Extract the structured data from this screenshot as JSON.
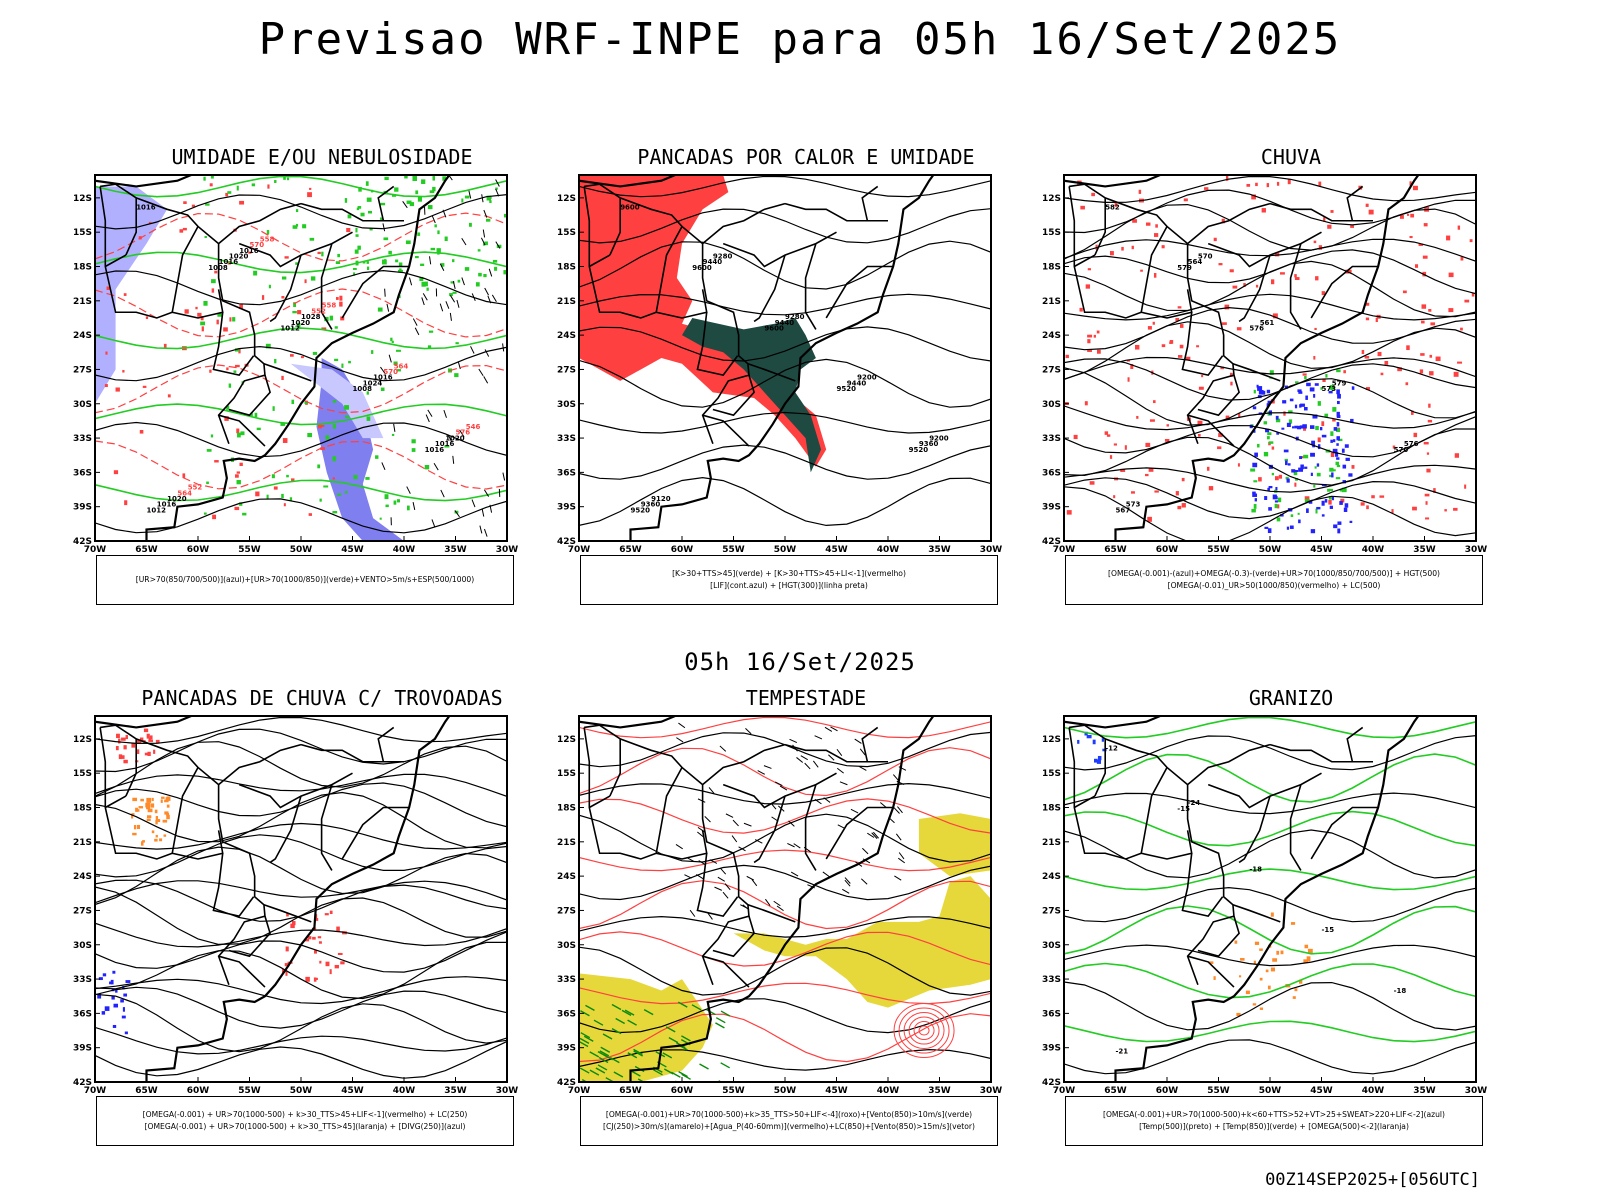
{
  "header": {
    "title": "Previsao WRF-INPE  para 05h 16/Set/2025"
  },
  "middle": {
    "subtitle": "05h 16/Set/2025"
  },
  "footer": {
    "run": "00Z14SEP2025+[056UTC]"
  },
  "axes": {
    "lat_labels": [
      "12S",
      "15S",
      "18S",
      "21S",
      "24S",
      "27S",
      "30S",
      "33S",
      "36S",
      "39S",
      "42S"
    ],
    "lon_labels": [
      "70W",
      "65W",
      "60W",
      "55W",
      "50W",
      "45W",
      "40W",
      "35W",
      "30W"
    ]
  },
  "colors": {
    "blue": "#6b6bff",
    "green": "#22cc22",
    "red": "#ff4040",
    "dark_green": "#1e4a42",
    "yellow": "#e6d83a",
    "orange": "#ff8a2a",
    "purple": "#b000ff",
    "land_line": "#000000"
  },
  "panels": [
    {
      "title": "UMIDADE E/OU NEBULOSIDADE",
      "legend": [
        "[UR>70(850/700/500)](azul)+[UR>70(1000/850)](verde)+VENTO>5m/s+ESP(500/1000)"
      ],
      "contour_labels": [
        "1016",
        "1008",
        "1012",
        "1008",
        "1016",
        "1012",
        "1016",
        "1020",
        "1024",
        "1016",
        "1016",
        "1020",
        "1028",
        "1016",
        "1020",
        "1020",
        "1016",
        "552",
        "570",
        "576",
        "564",
        "570",
        "558",
        "564",
        "546",
        "552",
        "558"
      ]
    },
    {
      "title": "PANCADAS POR CALOR E UMIDADE",
      "legend": [
        "[K>30+TTS>45](verde) + [K>30+TTS>45+LI<-1](vermelho)",
        "[LIF](cont.azul) + [HGT(300)](linha preta)"
      ],
      "contour_labels": [
        "9600",
        "9600",
        "9600",
        "9520",
        "9520",
        "9520",
        "9440",
        "9440",
        "9440",
        "9360",
        "9360",
        "9280",
        "9280",
        "9200",
        "9200",
        "9120"
      ]
    },
    {
      "title": "CHUVA",
      "legend": [
        "[OMEGA(-0.001)-(azul)+OMEGA(-0.3)-(verde)+UR>70(1000/850/700/500)] + HGT(500)",
        "[OMEGA(-0.01)_UR>50(1000/850)(vermelho) + LC(500)"
      ],
      "contour_labels": [
        "582",
        "579",
        "576",
        "573",
        "570",
        "567",
        "564",
        "561",
        "579",
        "576",
        "573",
        "570"
      ]
    },
    {
      "title": "PANCADAS DE CHUVA C/ TROVOADAS",
      "legend": [
        "[OMEGA(-0.001) + UR>70(1000-500) + k>30_TTS>45+LIF<-1](vermelho) + LC(250)",
        "[OMEGA(-0.001) + UR>70(1000-500) + k>30_TTS>45](laranja) + [DIVG(250)](azul)"
      ],
      "contour_labels": []
    },
    {
      "title": "TEMPESTADE",
      "legend": [
        "[OMEGA(-0.001)+UR>70(1000-500)+k>35_TTS>50+LIF<-4](roxo)+[Vento(850)>10m/s](verde)",
        "[CJ(250)>30m/s](amarelo)+[Agua_P(40-60mm)](vermelho)+LC(850)+[Vento(850)>15m/s](vetor)"
      ],
      "contour_labels": []
    },
    {
      "title": "GRANIZO",
      "legend": [
        "[OMEGA(-0.001)+UR>70(1000-500)+k<60+TTS>52+VT>25+SWEAT>220+LIF<-2](azul)",
        "[Temp(500)](preto) + [Temp(850)](verde) + [OMEGA(500)<-2](laranja)"
      ],
      "contour_labels": [
        "-12",
        "-15",
        "-18",
        "-15",
        "-18",
        "-21",
        "-24"
      ]
    }
  ],
  "chart_data": [
    {
      "type": "heatmap",
      "title": "UMIDADE E/OU NEBULOSIDADE",
      "xlim": [
        "70W",
        "30W"
      ],
      "ylim": [
        "12S",
        "42S"
      ],
      "fields": [
        "UR>70 850/700/500 (azul)",
        "UR>70 1000/850 (verde)",
        "VENTO>5m/s",
        "ESP 500/1000"
      ]
    },
    {
      "type": "heatmap",
      "title": "PANCADAS POR CALOR E UMIDADE",
      "xlim": [
        "70W",
        "30W"
      ],
      "ylim": [
        "12S",
        "42S"
      ],
      "fields": [
        "K>30+TTS>45 (verde)",
        "K>30+TTS>45+LI<-1 (vermelho)",
        "LIF (azul)",
        "HGT300"
      ]
    },
    {
      "type": "heatmap",
      "title": "CHUVA",
      "xlim": [
        "70W",
        "30W"
      ],
      "ylim": [
        "12S",
        "42S"
      ],
      "fields": [
        "OMEGA azul",
        "OMEGA verde",
        "UR vermelho",
        "HGT500",
        "LC500"
      ]
    },
    {
      "type": "heatmap",
      "title": "PANCADAS DE CHUVA C/ TROVOADAS",
      "xlim": [
        "70W",
        "30W"
      ],
      "ylim": [
        "12S",
        "42S"
      ],
      "fields": [
        "vermelho",
        "laranja",
        "azul",
        "LC250"
      ]
    },
    {
      "type": "heatmap",
      "title": "TEMPESTADE",
      "xlim": [
        "70W",
        "30W"
      ],
      "ylim": [
        "12S",
        "42S"
      ],
      "fields": [
        "roxo",
        "verde",
        "amarelo",
        "vermelho",
        "LC850",
        "vetor"
      ]
    },
    {
      "type": "heatmap",
      "title": "GRANIZO",
      "xlim": [
        "70W",
        "30W"
      ],
      "ylim": [
        "12S",
        "42S"
      ],
      "fields": [
        "azul",
        "Temp500 preto",
        "Temp850 verde",
        "laranja"
      ]
    }
  ]
}
